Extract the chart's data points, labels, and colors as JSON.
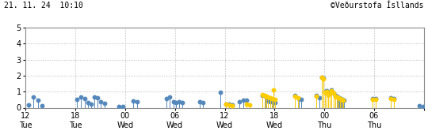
{
  "title_left": "21. 11. 24  10:10",
  "title_right": "©Veðurstofa Ísllands",
  "xlim": [
    0,
    48
  ],
  "ylim": [
    0,
    5
  ],
  "yticks": [
    0,
    1,
    2,
    3,
    4,
    5
  ],
  "xtick_positions": [
    0,
    6,
    12,
    18,
    24,
    30,
    36,
    42,
    48
  ],
  "xtick_labels_top": [
    "12",
    "18",
    "00",
    "06",
    "12",
    "18",
    "00",
    "06",
    ""
  ],
  "xtick_labels_bot": [
    "Tue",
    "Tue",
    "Wed",
    "Wed",
    "Wed",
    "Wed",
    "Thu",
    "Thu",
    ""
  ],
  "background_color": "#ffffff",
  "grid_color": "#aaaaaa",
  "blue_color": "#5588bb",
  "orange_color": "#ffcc00",
  "blue_events": [
    [
      0.3,
      0.15
    ],
    [
      0.9,
      0.65
    ],
    [
      1.5,
      0.45
    ],
    [
      2.0,
      0.1
    ],
    [
      6.2,
      0.5
    ],
    [
      6.7,
      0.65
    ],
    [
      7.1,
      0.55
    ],
    [
      7.5,
      0.3
    ],
    [
      7.9,
      0.2
    ],
    [
      8.3,
      0.65
    ],
    [
      8.7,
      0.6
    ],
    [
      9.0,
      0.35
    ],
    [
      9.5,
      0.25
    ],
    [
      11.2,
      0.05
    ],
    [
      11.7,
      0.05
    ],
    [
      13.0,
      0.4
    ],
    [
      13.4,
      0.35
    ],
    [
      17.0,
      0.55
    ],
    [
      17.4,
      0.65
    ],
    [
      17.8,
      0.35
    ],
    [
      18.1,
      0.3
    ],
    [
      18.5,
      0.35
    ],
    [
      18.9,
      0.3
    ],
    [
      21.0,
      0.35
    ],
    [
      21.4,
      0.3
    ],
    [
      23.5,
      0.95
    ],
    [
      24.1,
      0.2
    ],
    [
      24.5,
      0.2
    ],
    [
      24.9,
      0.15
    ],
    [
      25.8,
      0.35
    ],
    [
      26.2,
      0.45
    ],
    [
      26.6,
      0.45
    ],
    [
      28.5,
      0.75
    ],
    [
      28.9,
      0.7
    ],
    [
      29.2,
      0.4
    ],
    [
      29.5,
      0.35
    ],
    [
      29.8,
      0.35
    ],
    [
      30.1,
      0.3
    ],
    [
      32.5,
      0.75
    ],
    [
      32.9,
      0.55
    ],
    [
      33.2,
      0.5
    ],
    [
      35.0,
      0.75
    ],
    [
      35.4,
      0.6
    ],
    [
      35.7,
      1.9
    ],
    [
      35.9,
      1.85
    ],
    [
      36.1,
      1.0
    ],
    [
      36.3,
      1.05
    ],
    [
      36.5,
      0.8
    ],
    [
      36.7,
      0.9
    ],
    [
      36.9,
      1.1
    ],
    [
      37.1,
      0.9
    ],
    [
      37.3,
      0.75
    ],
    [
      37.5,
      0.7
    ],
    [
      37.6,
      0.65
    ],
    [
      37.8,
      0.6
    ],
    [
      38.0,
      0.55
    ],
    [
      38.2,
      0.5
    ],
    [
      38.4,
      0.45
    ],
    [
      41.8,
      0.55
    ],
    [
      42.2,
      0.55
    ],
    [
      44.0,
      0.6
    ],
    [
      44.4,
      0.55
    ],
    [
      47.5,
      0.1
    ],
    [
      47.9,
      0.05
    ]
  ],
  "orange_events": [
    [
      24.1,
      0.2
    ],
    [
      24.5,
      0.15
    ],
    [
      24.9,
      0.1
    ],
    [
      26.6,
      0.2
    ],
    [
      27.0,
      0.15
    ],
    [
      28.5,
      0.8
    ],
    [
      28.8,
      0.75
    ],
    [
      29.0,
      0.7
    ],
    [
      29.2,
      0.65
    ],
    [
      29.5,
      0.6
    ],
    [
      29.7,
      0.55
    ],
    [
      29.9,
      1.1
    ],
    [
      30.1,
      0.5
    ],
    [
      32.5,
      0.7
    ],
    [
      32.8,
      0.6
    ],
    [
      35.0,
      0.7
    ],
    [
      35.7,
      1.9
    ],
    [
      35.9,
      1.8
    ],
    [
      36.1,
      0.95
    ],
    [
      36.3,
      1.0
    ],
    [
      36.5,
      0.8
    ],
    [
      36.7,
      0.85
    ],
    [
      36.9,
      1.05
    ],
    [
      37.1,
      0.9
    ],
    [
      37.3,
      0.7
    ],
    [
      37.5,
      0.65
    ],
    [
      37.7,
      0.6
    ],
    [
      37.9,
      0.55
    ],
    [
      38.1,
      0.5
    ],
    [
      38.3,
      0.45
    ],
    [
      41.8,
      0.5
    ],
    [
      42.2,
      0.5
    ],
    [
      44.0,
      0.55
    ],
    [
      44.4,
      0.5
    ]
  ]
}
